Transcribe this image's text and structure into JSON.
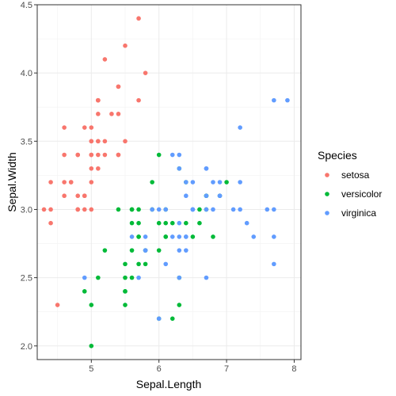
{
  "chart_data": {
    "type": "scatter",
    "xlabel": "Sepal.Length",
    "ylabel": "Sepal.Width",
    "xlim": [
      4.2,
      8.1
    ],
    "ylim": [
      1.9,
      4.5
    ],
    "x_ticks": [
      5,
      6,
      7,
      8
    ],
    "y_ticks": [
      2.0,
      2.5,
      3.0,
      3.5,
      4.0,
      4.5
    ],
    "x_tick_labels": [
      "5",
      "6",
      "7",
      "8"
    ],
    "y_tick_labels": [
      "2.0",
      "2.5",
      "3.0",
      "3.5",
      "4.0",
      "4.5"
    ],
    "grid": true,
    "legend": {
      "title": "Species",
      "position": "right"
    },
    "series": [
      {
        "name": "setosa",
        "color": "#F8766D",
        "points": [
          [
            5.1,
            3.5
          ],
          [
            4.9,
            3.0
          ],
          [
            4.7,
            3.2
          ],
          [
            4.6,
            3.1
          ],
          [
            5.0,
            3.6
          ],
          [
            5.4,
            3.9
          ],
          [
            4.6,
            3.4
          ],
          [
            5.0,
            3.4
          ],
          [
            4.4,
            2.9
          ],
          [
            4.9,
            3.1
          ],
          [
            5.4,
            3.7
          ],
          [
            4.8,
            3.4
          ],
          [
            4.8,
            3.0
          ],
          [
            4.3,
            3.0
          ],
          [
            5.8,
            4.0
          ],
          [
            5.7,
            4.4
          ],
          [
            5.4,
            3.9
          ],
          [
            5.1,
            3.5
          ],
          [
            5.7,
            3.8
          ],
          [
            5.1,
            3.8
          ],
          [
            5.4,
            3.4
          ],
          [
            5.1,
            3.7
          ],
          [
            4.6,
            3.6
          ],
          [
            5.1,
            3.3
          ],
          [
            4.8,
            3.4
          ],
          [
            5.0,
            3.0
          ],
          [
            5.0,
            3.4
          ],
          [
            5.2,
            3.5
          ],
          [
            5.2,
            3.4
          ],
          [
            4.7,
            3.2
          ],
          [
            4.8,
            3.1
          ],
          [
            5.4,
            3.4
          ],
          [
            5.2,
            4.1
          ],
          [
            5.5,
            4.2
          ],
          [
            4.9,
            3.1
          ],
          [
            5.0,
            3.2
          ],
          [
            5.5,
            3.5
          ],
          [
            4.9,
            3.6
          ],
          [
            4.4,
            3.0
          ],
          [
            5.1,
            3.4
          ],
          [
            5.0,
            3.5
          ],
          [
            4.5,
            2.3
          ],
          [
            4.4,
            3.2
          ],
          [
            5.0,
            3.5
          ],
          [
            5.1,
            3.8
          ],
          [
            4.8,
            3.0
          ],
          [
            5.1,
            3.8
          ],
          [
            4.6,
            3.2
          ],
          [
            5.3,
            3.7
          ],
          [
            5.0,
            3.3
          ]
        ]
      },
      {
        "name": "versicolor",
        "color": "#00BA38",
        "points": [
          [
            7.0,
            3.2
          ],
          [
            6.4,
            3.2
          ],
          [
            6.9,
            3.1
          ],
          [
            5.5,
            2.3
          ],
          [
            6.5,
            2.8
          ],
          [
            5.7,
            2.8
          ],
          [
            6.3,
            3.3
          ],
          [
            4.9,
            2.4
          ],
          [
            6.6,
            2.9
          ],
          [
            5.2,
            2.7
          ],
          [
            5.0,
            2.0
          ],
          [
            5.9,
            3.0
          ],
          [
            6.0,
            2.2
          ],
          [
            6.1,
            2.9
          ],
          [
            5.6,
            2.9
          ],
          [
            6.7,
            3.1
          ],
          [
            5.6,
            3.0
          ],
          [
            5.8,
            2.7
          ],
          [
            6.2,
            2.2
          ],
          [
            5.6,
            2.5
          ],
          [
            5.9,
            3.2
          ],
          [
            6.1,
            2.8
          ],
          [
            6.3,
            2.5
          ],
          [
            6.1,
            2.8
          ],
          [
            6.4,
            2.9
          ],
          [
            6.6,
            3.0
          ],
          [
            6.8,
            2.8
          ],
          [
            6.7,
            3.0
          ],
          [
            6.0,
            2.9
          ],
          [
            5.7,
            2.6
          ],
          [
            5.5,
            2.4
          ],
          [
            5.5,
            2.4
          ],
          [
            5.8,
            2.7
          ],
          [
            6.0,
            2.7
          ],
          [
            5.4,
            3.0
          ],
          [
            6.0,
            3.4
          ],
          [
            6.7,
            3.1
          ],
          [
            6.3,
            2.3
          ],
          [
            5.6,
            3.0
          ],
          [
            5.5,
            2.5
          ],
          [
            5.5,
            2.6
          ],
          [
            6.1,
            3.0
          ],
          [
            5.8,
            2.6
          ],
          [
            5.0,
            2.3
          ],
          [
            5.6,
            2.7
          ],
          [
            5.7,
            3.0
          ],
          [
            5.7,
            2.9
          ],
          [
            6.2,
            2.9
          ],
          [
            5.1,
            2.5
          ],
          [
            5.7,
            2.8
          ]
        ]
      },
      {
        "name": "virginica",
        "color": "#619CFF",
        "points": [
          [
            6.3,
            3.3
          ],
          [
            5.8,
            2.7
          ],
          [
            7.1,
            3.0
          ],
          [
            6.3,
            2.9
          ],
          [
            6.5,
            3.0
          ],
          [
            7.6,
            3.0
          ],
          [
            4.9,
            2.5
          ],
          [
            7.3,
            2.9
          ],
          [
            6.7,
            2.5
          ],
          [
            7.2,
            3.6
          ],
          [
            6.5,
            3.2
          ],
          [
            6.4,
            2.7
          ],
          [
            6.8,
            3.0
          ],
          [
            5.7,
            2.5
          ],
          [
            5.8,
            2.8
          ],
          [
            6.4,
            3.2
          ],
          [
            6.5,
            3.0
          ],
          [
            7.7,
            3.8
          ],
          [
            7.7,
            2.6
          ],
          [
            6.0,
            2.2
          ],
          [
            6.9,
            3.2
          ],
          [
            5.6,
            2.8
          ],
          [
            7.7,
            2.8
          ],
          [
            6.3,
            2.7
          ],
          [
            6.7,
            3.3
          ],
          [
            7.2,
            3.2
          ],
          [
            6.2,
            2.8
          ],
          [
            6.1,
            3.0
          ],
          [
            6.4,
            2.8
          ],
          [
            7.2,
            3.0
          ],
          [
            7.4,
            2.8
          ],
          [
            7.9,
            3.8
          ],
          [
            6.4,
            2.8
          ],
          [
            6.3,
            2.8
          ],
          [
            6.1,
            2.6
          ],
          [
            7.7,
            3.0
          ],
          [
            6.3,
            3.4
          ],
          [
            6.4,
            3.1
          ],
          [
            6.0,
            3.0
          ],
          [
            6.9,
            3.1
          ],
          [
            6.7,
            3.1
          ],
          [
            6.9,
            3.1
          ],
          [
            5.8,
            2.7
          ],
          [
            6.8,
            3.2
          ],
          [
            6.7,
            3.3
          ],
          [
            6.7,
            3.0
          ],
          [
            6.3,
            2.5
          ],
          [
            6.5,
            3.0
          ],
          [
            6.2,
            3.4
          ],
          [
            5.9,
            3.0
          ]
        ]
      }
    ]
  }
}
